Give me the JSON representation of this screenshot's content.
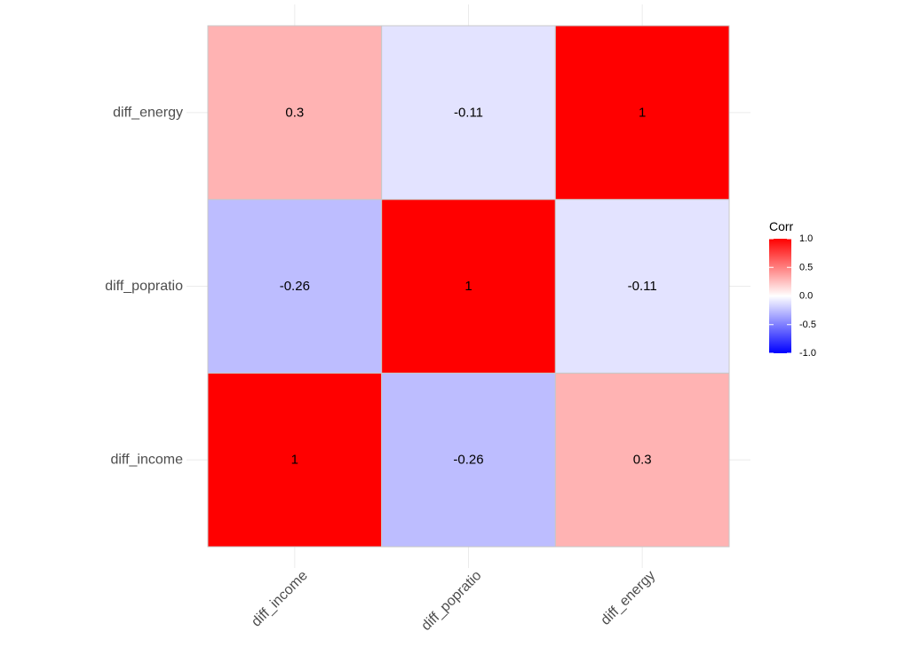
{
  "chart_data": {
    "type": "heatmap",
    "title": "",
    "xlabel": "",
    "ylabel": "",
    "x_categories": [
      "diff_income",
      "diff_popratio",
      "diff_energy"
    ],
    "y_categories": [
      "diff_income",
      "diff_popratio",
      "diff_energy"
    ],
    "cells": [
      {
        "x": "diff_income",
        "y": "diff_income",
        "value": 1,
        "label": "1"
      },
      {
        "x": "diff_popratio",
        "y": "diff_income",
        "value": -0.26,
        "label": "-0.26"
      },
      {
        "x": "diff_energy",
        "y": "diff_income",
        "value": 0.3,
        "label": "0.3"
      },
      {
        "x": "diff_income",
        "y": "diff_popratio",
        "value": -0.26,
        "label": "-0.26"
      },
      {
        "x": "diff_popratio",
        "y": "diff_popratio",
        "value": 1,
        "label": "1"
      },
      {
        "x": "diff_energy",
        "y": "diff_popratio",
        "value": -0.11,
        "label": "-0.11"
      },
      {
        "x": "diff_income",
        "y": "diff_energy",
        "value": 0.3,
        "label": "0.3"
      },
      {
        "x": "diff_popratio",
        "y": "diff_energy",
        "value": -0.11,
        "label": "-0.11"
      },
      {
        "x": "diff_energy",
        "y": "diff_energy",
        "value": 1,
        "label": "1"
      }
    ],
    "legend": {
      "title": "Corr",
      "placement": "right",
      "ticks": [
        {
          "value": 1.0,
          "label": "1.0"
        },
        {
          "value": 0.5,
          "label": "0.5"
        },
        {
          "value": 0.0,
          "label": "0.0"
        },
        {
          "value": -0.5,
          "label": "-0.5"
        },
        {
          "value": -1.0,
          "label": "-1.0"
        }
      ],
      "range": [
        -1,
        1
      ]
    },
    "colors": {
      "low": "#0000ff",
      "mid": "#ffffff",
      "high": "#ff0000",
      "grid": "#ebebeb",
      "tile_border": "#c8c8c8",
      "axis_text": "#4d4d4d",
      "cell_text": "#000000"
    },
    "grid": true
  }
}
